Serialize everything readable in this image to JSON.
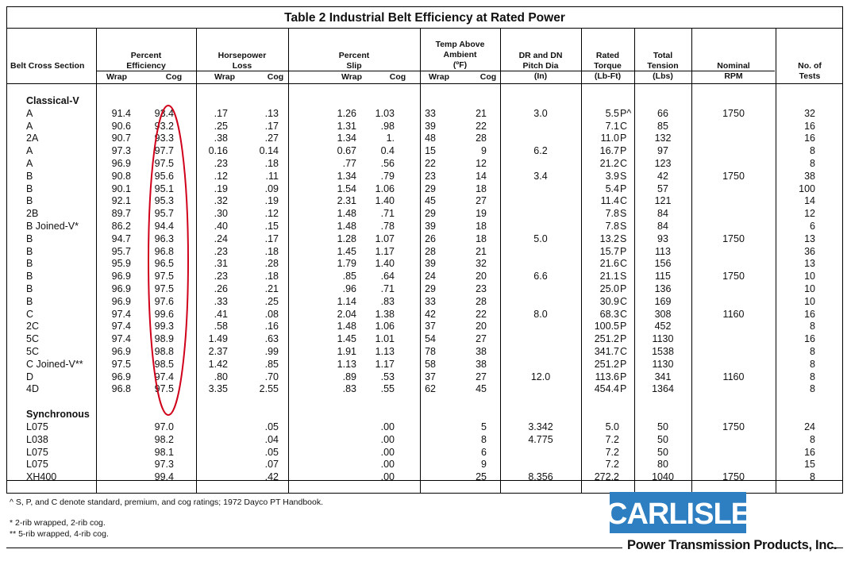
{
  "title": "Table 2  Industrial Belt Efficiency at Rated Power",
  "headers": {
    "belt": "Belt Cross Section",
    "eff": [
      "Percent",
      "Efficiency"
    ],
    "hp": [
      "Horsepower",
      "Loss"
    ],
    "slip": [
      "Percent",
      "Slip"
    ],
    "temp": [
      "Temp Above",
      "Ambient",
      "(ºF)"
    ],
    "pitch": [
      "DR and DN",
      "Pitch Dia",
      "(In)"
    ],
    "torque": [
      "Rated",
      "Torque",
      "(Lb-Ft)"
    ],
    "tension": [
      "Total",
      "Tension",
      "(Lbs)"
    ],
    "rpm": [
      "Nominal",
      "RPM"
    ],
    "tests": [
      "No. of",
      "Tests"
    ],
    "wrap": "Wrap",
    "cog": "Cog"
  },
  "sections": [
    {
      "name": "Classical-V",
      "rows": [
        [
          "A",
          "91.4",
          "93.4",
          ".17",
          ".13",
          "1.26",
          "1.03",
          "33",
          "21",
          "3.0",
          "5.5",
          "P^",
          "66",
          "1750",
          "32"
        ],
        [
          "A",
          "90.6",
          "93.2",
          ".25",
          ".17",
          "1.31",
          ".98",
          "39",
          "22",
          "",
          "7.1",
          "C",
          "85",
          "",
          "16"
        ],
        [
          "2A",
          "90.7",
          "93.3",
          ".38",
          ".27",
          "1.34",
          "1.",
          "48",
          "28",
          "",
          "11.0",
          "P",
          "132",
          "",
          "16"
        ],
        [
          "A",
          "97.3",
          "97.7",
          "0.16",
          "0.14",
          "0.67",
          "0.4",
          "15",
          "9",
          "6.2",
          "16.7",
          "P",
          "97",
          "",
          "8"
        ],
        [
          "A",
          "96.9",
          "97.5",
          ".23",
          ".18",
          ".77",
          ".56",
          "22",
          "12",
          "",
          "21.2",
          "C",
          "123",
          "",
          "8"
        ],
        [
          "B",
          "90.8",
          "95.6",
          ".12",
          ".11",
          "1.34",
          ".79",
          "23",
          "14",
          "3.4",
          "3.9",
          "S",
          "42",
          "1750",
          "38"
        ],
        [
          "B",
          "90.1",
          "95.1",
          ".19",
          ".09",
          "1.54",
          "1.06",
          "29",
          "18",
          "",
          "5.4",
          "P",
          "57",
          "",
          "100"
        ],
        [
          "B",
          "92.1",
          "95.3",
          ".32",
          ".19",
          "2.31",
          "1.40",
          "45",
          "27",
          "",
          "11.4",
          "C",
          "121",
          "",
          "14"
        ],
        [
          "2B",
          "89.7",
          "95.7",
          ".30",
          ".12",
          "1.48",
          ".71",
          "29",
          "19",
          "",
          "7.8",
          "S",
          "84",
          "",
          "12"
        ],
        [
          "B Joined-V*",
          "86.2",
          "94.4",
          ".40",
          ".15",
          "1.48",
          ".78",
          "39",
          "18",
          "",
          "7.8",
          "S",
          "84",
          "",
          "6"
        ],
        [
          "B",
          "94.7",
          "96.3",
          ".24",
          ".17",
          "1.28",
          "1.07",
          "26",
          "18",
          "5.0",
          "13.2",
          "S",
          "93",
          "1750",
          "13"
        ],
        [
          "B",
          "95.7",
          "96.8",
          ".23",
          ".18",
          "1.45",
          "1.17",
          "28",
          "21",
          "",
          "15.7",
          "P",
          "113",
          "",
          "36"
        ],
        [
          "B",
          "95.9",
          "96.5",
          ".31",
          ".28",
          "1.79",
          "1.40",
          "39",
          "32",
          "",
          "21.6",
          "C",
          "156",
          "",
          "13"
        ],
        [
          "B",
          "96.9",
          "97.5",
          ".23",
          ".18",
          ".85",
          ".64",
          "24",
          "20",
          "6.6",
          "21.1",
          "S",
          "115",
          "1750",
          "10"
        ],
        [
          "B",
          "96.9",
          "97.5",
          ".26",
          ".21",
          ".96",
          ".71",
          "29",
          "23",
          "",
          "25.0",
          "P",
          "136",
          "",
          "10"
        ],
        [
          "B",
          "96.9",
          "97.6",
          ".33",
          ".25",
          "1.14",
          ".83",
          "33",
          "28",
          "",
          "30.9",
          "C",
          "169",
          "",
          "10"
        ],
        [
          "C",
          "97.4",
          "99.6",
          ".41",
          ".08",
          "2.04",
          "1.38",
          "42",
          "22",
          "8.0",
          "68.3",
          "C",
          "308",
          "1160",
          "16"
        ],
        [
          "2C",
          "97.4",
          "99.3",
          ".58",
          ".16",
          "1.48",
          "1.06",
          "37",
          "20",
          "",
          "100.5",
          "P",
          "452",
          "",
          "8"
        ],
        [
          "5C",
          "97.4",
          "98.9",
          "1.49",
          ".63",
          "1.45",
          "1.01",
          "54",
          "27",
          "",
          "251.2",
          "P",
          "1130",
          "",
          "16"
        ],
        [
          "5C",
          "96.9",
          "98.8",
          "2.37",
          ".99",
          "1.91",
          "1.13",
          "78",
          "38",
          "",
          "341.7",
          "C",
          "1538",
          "",
          "8"
        ],
        [
          "C Joined-V**",
          "97.5",
          "98.5",
          "1.42",
          ".85",
          "1.13",
          "1.17",
          "58",
          "38",
          "",
          "251.2",
          "P",
          "1130",
          "",
          "8"
        ],
        [
          "D",
          "96.9",
          "97.4",
          ".80",
          ".70",
          ".89",
          ".53",
          "37",
          "27",
          "12.0",
          "113.6",
          "P",
          "341",
          "1160",
          "8"
        ],
        [
          "4D",
          "96.8",
          "97.5",
          "3.35",
          "2.55",
          ".83",
          ".55",
          "62",
          "45",
          "",
          "454.4",
          "P",
          "1364",
          "",
          "8"
        ]
      ]
    },
    {
      "name": "Synchronous",
      "rows": [
        [
          "L075",
          "",
          "97.0",
          "",
          ".05",
          "",
          ".00",
          "",
          "5",
          "3.342",
          "5.0",
          "",
          "50",
          "1750",
          "24"
        ],
        [
          "L038",
          "",
          "98.2",
          "",
          ".04",
          "",
          ".00",
          "",
          "8",
          "4.775",
          "7.2",
          "",
          "50",
          "",
          "8"
        ],
        [
          "L075",
          "",
          "98.1",
          "",
          ".05",
          "",
          ".00",
          "",
          "6",
          "",
          "7.2",
          "",
          "50",
          "",
          "16"
        ],
        [
          "L075",
          "",
          "97.3",
          "",
          ".07",
          "",
          ".00",
          "",
          "9",
          "",
          "7.2",
          "",
          "80",
          "",
          "15"
        ],
        [
          "XH400",
          "",
          "99.4",
          "",
          ".42",
          "",
          ".00",
          "",
          "25",
          "8.356",
          "272.2",
          "",
          "1040",
          "1750",
          "8"
        ]
      ]
    }
  ],
  "notes": [
    "^ S, P, and C denote standard, premium, and cog ratings; 1972 Dayco PT Handbook.",
    "* 2-rib wrapped, 2-rib cog.",
    "** 5-rib wrapped, 4-rib cog."
  ],
  "logo": {
    "text": "CARLISLE",
    "color": "#2e7fc1"
  },
  "tagline": "Power Transmission Products, Inc.",
  "annotation_color": "#d0021b"
}
